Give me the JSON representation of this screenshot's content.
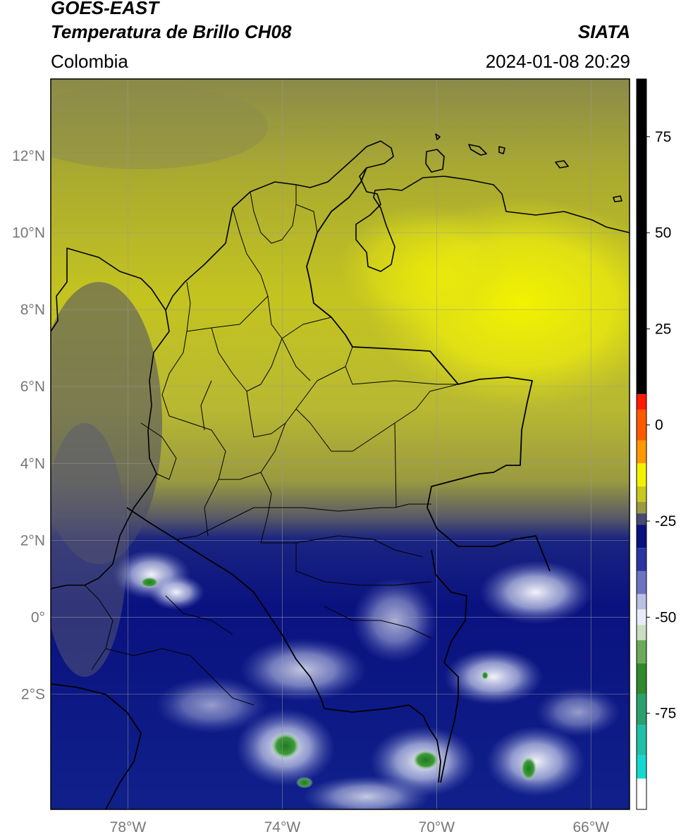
{
  "header": {
    "title_line1": "GOES-EAST",
    "title_line2": "Temperatura de Brillo CH08",
    "organization": "SIATA",
    "region": "Colombia",
    "datetime": "2024-01-08 20:29"
  },
  "map": {
    "lon_range": [
      -80,
      -65
    ],
    "lat_range": [
      -5,
      14
    ],
    "lat_ticks": [
      {
        "lat": 12,
        "label": "12°N"
      },
      {
        "lat": 10,
        "label": "10°N"
      },
      {
        "lat": 8,
        "label": "8°N"
      },
      {
        "lat": 6,
        "label": "6°N"
      },
      {
        "lat": 4,
        "label": "4°N"
      },
      {
        "lat": 2,
        "label": "2°N"
      },
      {
        "lat": 0,
        "label": "0°"
      },
      {
        "lat": -2,
        "label": "2°S"
      }
    ],
    "lon_ticks": [
      {
        "lon": -78,
        "label": "78°W"
      },
      {
        "lon": -74,
        "label": "74°W"
      },
      {
        "lon": -70,
        "label": "70°W"
      },
      {
        "lon": -66,
        "label": "66°W"
      }
    ]
  },
  "colorbar": {
    "range": [
      -100,
      90
    ],
    "tick_values": [
      75,
      50,
      25,
      0,
      -25,
      -50,
      -75
    ],
    "tick_labels": [
      "75",
      "50",
      "25",
      "0",
      "-25",
      "-50",
      "-75"
    ],
    "colors": {
      "warm_black": "#000000",
      "red": "#ff1a00",
      "orange": "#ff9900",
      "yellow": "#f2f200",
      "olive": "#9a9a40",
      "dark_blue": "#0a1280",
      "light": "#e8ecf8",
      "green": "#2f8a2a",
      "cyan": "#16d8d0"
    }
  }
}
